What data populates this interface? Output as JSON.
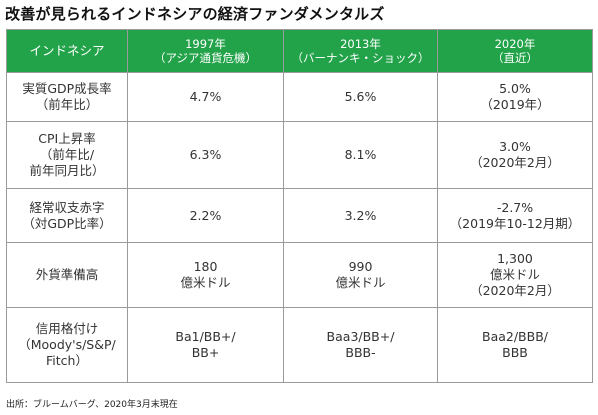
{
  "title": "改善が見られるインドネシアの経済ファンダメンタルズ",
  "header": {
    "label": "インドネシア",
    "columns": [
      {
        "year": "1997年",
        "note": "（アジア通貨危機）"
      },
      {
        "year": "2013年",
        "note": "（バーナンキ・ショック）"
      },
      {
        "year": "2020年",
        "note": "（直近）"
      }
    ]
  },
  "rows": [
    {
      "label": [
        "実質GDP成長率",
        "（前年比）"
      ],
      "cells": [
        [
          "4.7%"
        ],
        [
          "5.6%"
        ],
        [
          "5.0%",
          "（2019年）"
        ]
      ]
    },
    {
      "label": [
        "CPI上昇率",
        "（前年比/",
        "前年同月比）"
      ],
      "cells": [
        [
          "6.3%"
        ],
        [
          "8.1%"
        ],
        [
          "3.0%",
          "（2020年2月）"
        ]
      ]
    },
    {
      "label": [
        "経常収支赤字",
        "（対GDP比率）"
      ],
      "cells": [
        [
          "2.2%"
        ],
        [
          "3.2%"
        ],
        [
          "-2.7%",
          "（2019年10-12月期）"
        ]
      ]
    },
    {
      "label": [
        "外貨準備高"
      ],
      "cells": [
        [
          "180",
          "億米ドル"
        ],
        [
          "990",
          "億米ドル"
        ],
        [
          "1,300",
          "億米ドル",
          "（2020年2月）"
        ]
      ]
    },
    {
      "label": [
        "信用格付け",
        "（Moody's/S&P/",
        "Fitch）"
      ],
      "cells": [
        [
          "Ba1/BB+/",
          "BB+"
        ],
        [
          "Baa3/BB+/",
          "BBB-"
        ],
        [
          "Baa2/BBB/",
          "BBB"
        ]
      ]
    }
  ],
  "footer": "出所：ブルームバーグ、2020年3月末現在"
}
